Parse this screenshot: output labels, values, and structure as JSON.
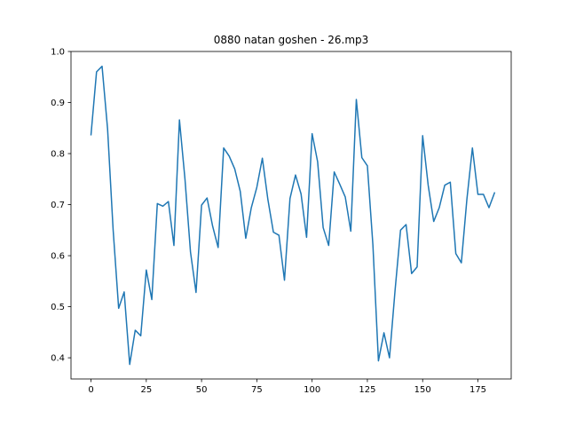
{
  "chart_data": {
    "type": "line",
    "title": "0880 natan goshen - 26.mp3",
    "xlabel": "",
    "ylabel": "",
    "xlim": [
      -9.05,
      190.05
    ],
    "ylim": [
      0.3585,
      1.0
    ],
    "xticks": [
      0,
      25,
      50,
      75,
      100,
      125,
      150,
      175
    ],
    "yticks": [
      0.4,
      0.5,
      0.6,
      0.7,
      0.8,
      0.9,
      1.0
    ],
    "xtick_labels": [
      "0",
      "25",
      "50",
      "75",
      "100",
      "125",
      "150",
      "175"
    ],
    "ytick_labels": [
      "0.4",
      "0.5",
      "0.6",
      "0.7",
      "0.8",
      "0.9",
      "1.0"
    ],
    "grid": false,
    "series": [
      {
        "color": "#1f77b4",
        "x": [
          0,
          2.5,
          5,
          7.5,
          10,
          12.5,
          15,
          17.5,
          20,
          22.5,
          25,
          27.5,
          30,
          32.5,
          35,
          37.5,
          40,
          42.5,
          45,
          47.5,
          50,
          52.5,
          55,
          57.5,
          60,
          62.5,
          65,
          67.5,
          70,
          72.5,
          75,
          77.5,
          80,
          82.5,
          85,
          87.5,
          90,
          92.5,
          95,
          97.5,
          100,
          102.5,
          105,
          107.5,
          110,
          112.5,
          115,
          117.5,
          120,
          122.5,
          125,
          127.5,
          130,
          132.5,
          135,
          137.5,
          140,
          142.5,
          145,
          147.5,
          150,
          152.5,
          155,
          157.5,
          160,
          162.5,
          165,
          167.5,
          170,
          172.5,
          175,
          177.5,
          180,
          182.5
        ],
        "y": [
          0.837,
          0.96,
          0.971,
          0.848,
          0.651,
          0.497,
          0.529,
          0.387,
          0.454,
          0.443,
          0.572,
          0.514,
          0.702,
          0.697,
          0.706,
          0.62,
          0.866,
          0.75,
          0.607,
          0.528,
          0.699,
          0.713,
          0.658,
          0.616,
          0.811,
          0.795,
          0.77,
          0.726,
          0.634,
          0.694,
          0.734,
          0.791,
          0.71,
          0.646,
          0.64,
          0.552,
          0.712,
          0.758,
          0.721,
          0.636,
          0.839,
          0.784,
          0.655,
          0.62,
          0.764,
          0.74,
          0.715,
          0.648,
          0.906,
          0.792,
          0.776,
          0.621,
          0.394,
          0.449,
          0.4,
          0.531,
          0.65,
          0.661,
          0.565,
          0.578,
          0.835,
          0.738,
          0.667,
          0.694,
          0.738,
          0.744,
          0.604,
          0.586,
          0.71,
          0.811,
          0.72,
          0.72,
          0.694,
          0.723
        ]
      }
    ]
  }
}
